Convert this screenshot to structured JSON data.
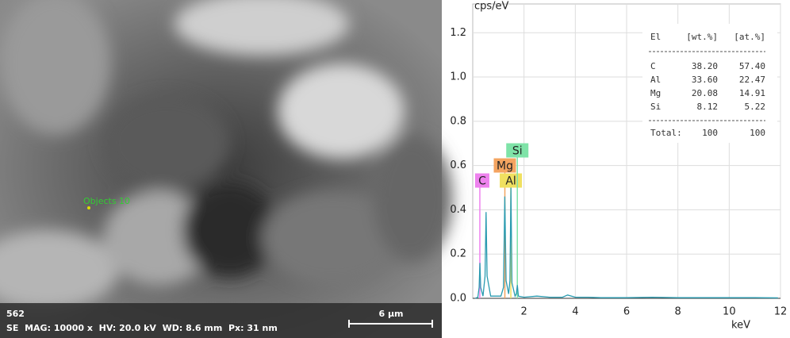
{
  "image": {
    "object_label": "Objects 10",
    "id_text": "562",
    "info_text": "SE  MAG: 10000 x  HV: 20.0 kV  WD: 8.6 mm  Px: 31 nm",
    "scale_label": "6 µm"
  },
  "chart_data": {
    "type": "line",
    "ylabel": "cps/eV",
    "xlabel": "keV",
    "xlim": [
      0,
      12
    ],
    "ylim": [
      0,
      1.33
    ],
    "xticks": [
      2,
      4,
      6,
      8,
      10,
      12
    ],
    "yticks": [
      {
        "value": 0,
        "label": "0.0"
      },
      {
        "value": 0.2,
        "label": "0.2"
      },
      {
        "value": 0.4,
        "label": "0.4"
      },
      {
        "value": 0.6,
        "label": "0.6"
      },
      {
        "value": 0.8,
        "label": "0.8"
      },
      {
        "value": 1.0,
        "label": "1.0"
      },
      {
        "value": 1.2,
        "label": "1.2"
      }
    ],
    "grid": true,
    "series": [
      {
        "color": "#2a9bb0",
        "x": [
          0.1,
          0.2,
          0.25,
          0.28,
          0.31,
          0.4,
          0.48,
          0.52,
          0.56,
          0.7,
          0.9,
          1.1,
          1.2,
          1.25,
          1.3,
          1.4,
          1.45,
          1.49,
          1.53,
          1.65,
          1.7,
          1.74,
          1.78,
          2.0,
          2.5,
          3.0,
          3.5,
          3.7,
          4.0,
          4.5,
          5,
          6,
          7,
          8,
          9,
          10,
          11,
          11.9
        ],
        "values": [
          0,
          0.005,
          0.05,
          0.16,
          0.05,
          0.01,
          0.1,
          0.39,
          0.1,
          0.01,
          0.01,
          0.01,
          0.05,
          0.46,
          0.08,
          0.02,
          0.08,
          0.5,
          0.07,
          0.01,
          0.02,
          0.06,
          0.01,
          0.005,
          0.01,
          0.005,
          0.005,
          0.015,
          0.005,
          0.005,
          0.003,
          0.003,
          0.005,
          0.003,
          0.003,
          0.003,
          0.003,
          0.002
        ]
      }
    ],
    "elements": [
      {
        "name": "C",
        "energy": 0.277,
        "color": "#ee82ee"
      },
      {
        "name": "Mg",
        "energy": 1.253,
        "color": "#f4a460"
      },
      {
        "name": "Al",
        "energy": 1.486,
        "color": "#f0e060"
      },
      {
        "name": "Si",
        "energy": 1.739,
        "color": "#7fe3a8"
      }
    ],
    "table": {
      "header": [
        "El",
        "[wt.%]",
        "[at.%]"
      ],
      "rows": [
        [
          "C",
          "38.20",
          "57.40"
        ],
        [
          "Al",
          "33.60",
          "22.47"
        ],
        [
          "Mg",
          "20.08",
          "14.91"
        ],
        [
          "Si",
          "8.12",
          "5.22"
        ]
      ],
      "total": [
        "Total:",
        "100",
        "100"
      ]
    }
  }
}
